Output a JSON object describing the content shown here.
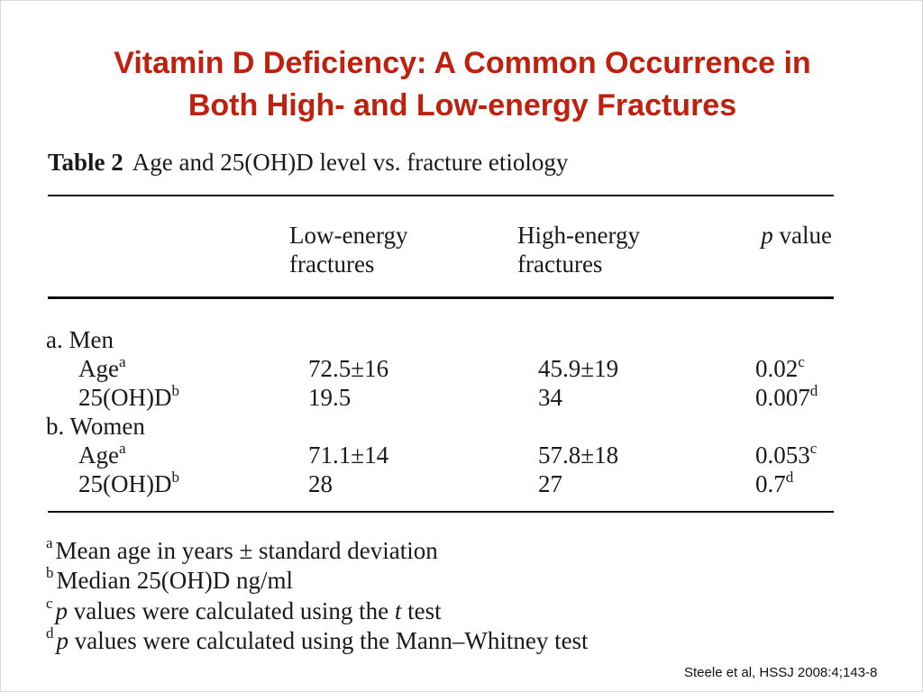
{
  "slide": {
    "title_line1": "Vitamin D Deficiency: A Common Occurrence in",
    "title_line2": "Both High- and Low-energy Fractures",
    "title_color": "#c0200e",
    "citation": "Steele et al, HSSJ 2008:4;143-8"
  },
  "table": {
    "label": "Table 2",
    "caption": "Age and 25(OH)D level vs. fracture etiology",
    "headers": {
      "low_line1": "Low-energy",
      "low_line2": "fractures",
      "high_line1": "High-energy",
      "high_line2": "fractures",
      "p_italic": "p",
      "p_rest": "value"
    },
    "groups": [
      {
        "name": "a. Men",
        "rows": [
          {
            "label": "Age",
            "label_sup": "a",
            "low": "72.5±16",
            "high": "45.9±19",
            "p": "0.02",
            "p_sup": "c"
          },
          {
            "label": "25(OH)D",
            "label_sup": "b",
            "low": "19.5",
            "high": "34",
            "p": "0.007",
            "p_sup": "d"
          }
        ]
      },
      {
        "name": "b. Women",
        "rows": [
          {
            "label": "Age",
            "label_sup": "a",
            "low": "71.1±14",
            "high": "57.8±18",
            "p": "0.053",
            "p_sup": "c"
          },
          {
            "label": "25(OH)D",
            "label_sup": "b",
            "low": "28",
            "high": "27",
            "p": "0.7",
            "p_sup": "d"
          }
        ]
      }
    ],
    "footnotes": [
      {
        "mark": "a",
        "italic": "",
        "text": "Mean age in years ± standard deviation"
      },
      {
        "mark": "b",
        "italic": "",
        "text": "Median 25(OH)D ng/ml"
      },
      {
        "mark": "c",
        "italic": "p",
        "text": "values were calculated using the",
        "italic2": "t",
        "text2": "test"
      },
      {
        "mark": "d",
        "italic": "p",
        "text": "values were calculated using the Mann–Whitney test"
      }
    ]
  }
}
